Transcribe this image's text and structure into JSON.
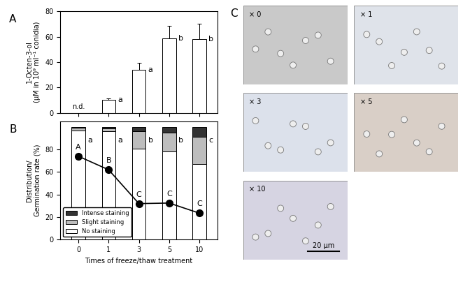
{
  "chart_data": [
    {
      "panel_label": "A",
      "type": "bar",
      "categories": [
        "0",
        "1",
        "3",
        "5",
        "10"
      ],
      "values": [
        null,
        10.5,
        34,
        58.5,
        58
      ],
      "errors": [
        null,
        1,
        5.5,
        10,
        12
      ],
      "annotations": [
        "n.d.",
        "a",
        "a",
        "b",
        "b"
      ],
      "color": "#ffffff",
      "y_label": "1-Octen-3-ol\n(µM in 10⁹ ml⁻¹ conidia)",
      "ylim": [
        0,
        80
      ],
      "yticks": [
        0,
        20,
        40,
        60,
        80
      ],
      "tick_labels": "y"
    },
    {
      "panel_label": "B",
      "type": "bar",
      "stacked": true,
      "categories": [
        "0",
        "1",
        "3",
        "5",
        "10"
      ],
      "x_label": "Times of freeze/thaw treatment",
      "y_label": "Distribution/\nGermination rate (%)",
      "ylim": [
        0,
        105
      ],
      "yticks": [
        0,
        20,
        40,
        60,
        80
      ],
      "legend": "lower left",
      "annotations": [
        "a",
        "a",
        "b",
        "b",
        "c"
      ],
      "series": [
        {
          "name": "No staining",
          "color": "#ffffff",
          "values": [
            97,
            96,
            81,
            78,
            67
          ]
        },
        {
          "name": "Slight staining",
          "color": "#bdbdbd",
          "values": [
            2,
            2.5,
            15,
            17,
            24
          ]
        },
        {
          "name": "Intense staining",
          "color": "#333333",
          "values": [
            1,
            1.5,
            4,
            5,
            9
          ]
        },
        {
          "type": "line",
          "color": "#000000",
          "marker": "o",
          "values": [
            74,
            62,
            32,
            32.5,
            23.5
          ],
          "annotations": [
            "A",
            "B",
            "C",
            "C",
            "C"
          ]
        }
      ]
    }
  ],
  "image_panel": {
    "panel_label": "C",
    "images": [
      "× 0",
      "× 1",
      "× 3",
      "× 5",
      "× 10"
    ],
    "scale_bar": "20 µm"
  }
}
